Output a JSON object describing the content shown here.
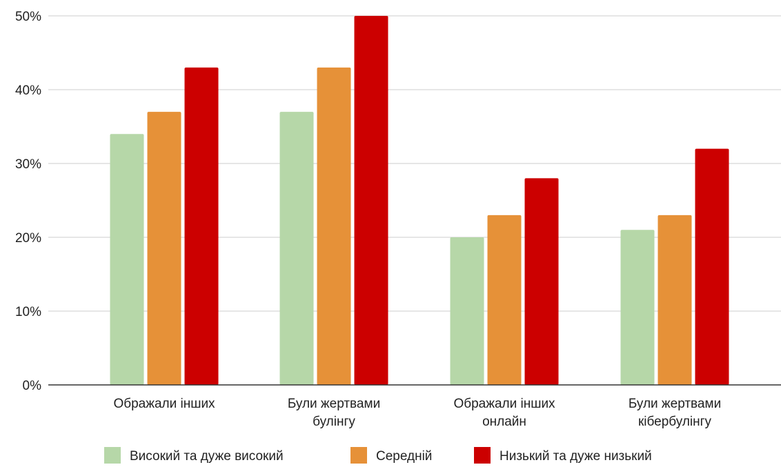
{
  "chart_data": {
    "type": "bar",
    "categories": [
      [
        "Ображали інших"
      ],
      [
        "Були жертвами",
        "булінгу"
      ],
      [
        "Ображали інших",
        "онлайн"
      ],
      [
        "Були жертвами",
        "кібербулінгу"
      ]
    ],
    "series": [
      {
        "name": "Високий та дуже високий",
        "color": "#b6d7a8",
        "values": [
          34,
          37,
          20,
          21
        ]
      },
      {
        "name": "Середній",
        "color": "#e69138",
        "values": [
          37,
          43,
          23,
          23
        ]
      },
      {
        "name": "Низький та дуже низький",
        "color": "#cc0000",
        "values": [
          43,
          50,
          28,
          32
        ]
      }
    ],
    "ylim": [
      0,
      50
    ],
    "yticks": [
      "0%",
      "10%",
      "20%",
      "30%",
      "40%",
      "50%"
    ],
    "grid": true,
    "legend_position": "bottom"
  }
}
